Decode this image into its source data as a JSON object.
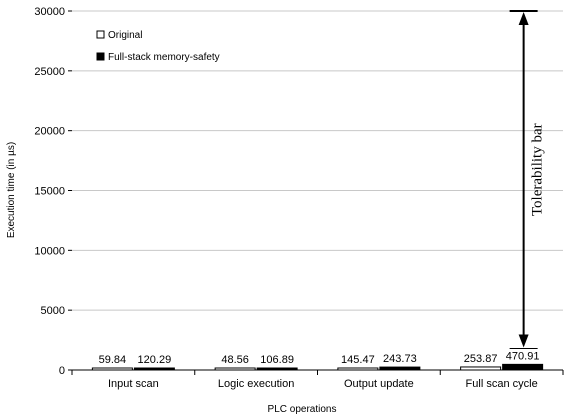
{
  "chart_data": {
    "type": "bar",
    "xlabel": "PLC operations",
    "ylabel": "Execution time (in µs)",
    "ylim": [
      0,
      30000
    ],
    "yticks": [
      0,
      5000,
      10000,
      15000,
      20000,
      25000,
      30000
    ],
    "categories": [
      "Input scan",
      "Logic execution",
      "Output update",
      "Full scan cycle"
    ],
    "series": [
      {
        "name": "Original",
        "values": [
          59.84,
          48.56,
          145.47,
          253.87
        ],
        "labels": [
          "59.84",
          "48.56",
          "145.47",
          "253.87"
        ],
        "fill": "#ffffff"
      },
      {
        "name": "Full-stack memory-safety",
        "values": [
          120.29,
          106.89,
          243.73,
          470.91
        ],
        "labels": [
          "120.29",
          "106.89",
          "243.73",
          "470.91"
        ],
        "fill": "#000000"
      }
    ],
    "legend_position": "top-left",
    "grid": "horizontal",
    "annotation": {
      "text": "Tolerability bar",
      "from": 1800,
      "to": 30000,
      "category": "Full scan cycle"
    }
  }
}
